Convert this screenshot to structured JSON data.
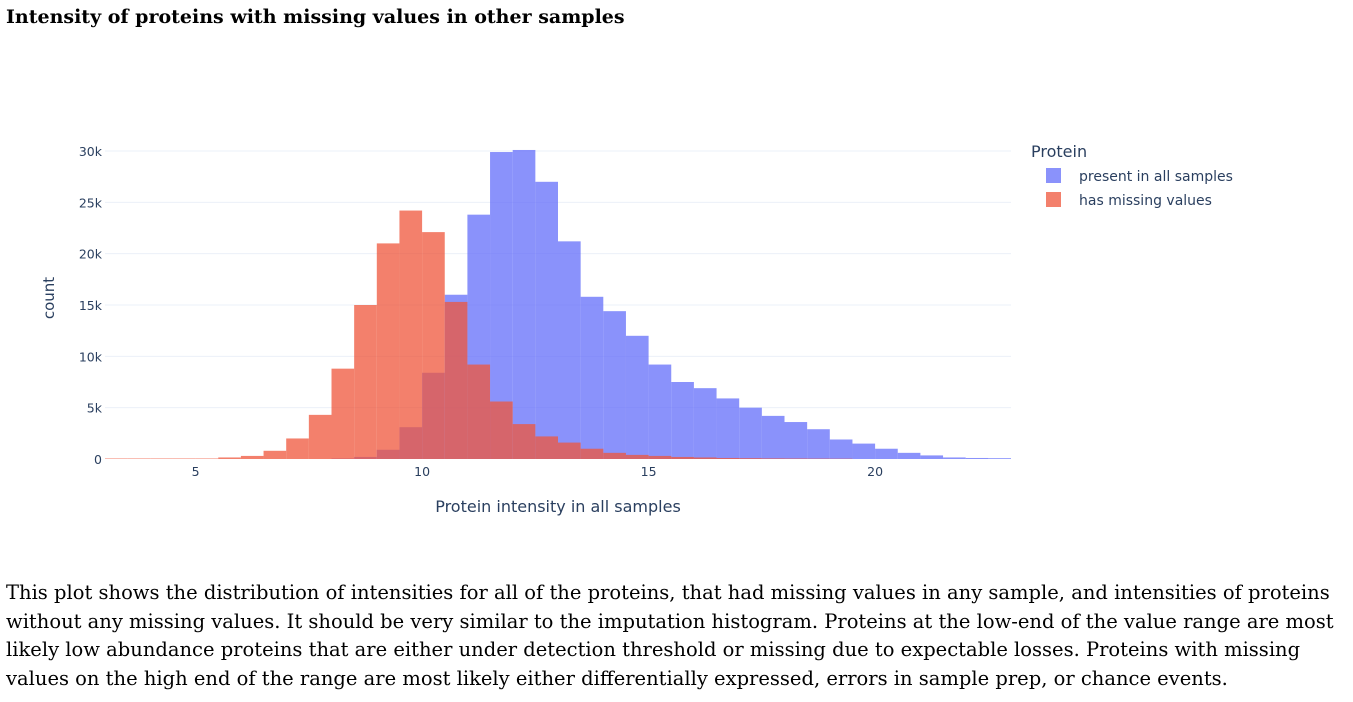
{
  "page": {
    "title": "Intensity of proteins with missing values in other samples",
    "description": "This plot shows the distribution of intensities for all of the proteins, that had missing values in any sample, and intensities of proteins without any missing values. It should be very similar to the imputation histogram. Proteins at the low-end of the value range are most likely low abundance proteins that are either under detection threshold or missing due to expectable losses. Proteins with missing values on the high end of the range are most likely either differentially expressed, errors in sample prep, or chance events."
  },
  "chart_data": {
    "type": "bar",
    "xlabel": "Protein intensity in all samples",
    "ylabel": "count",
    "xlim": [
      3,
      23
    ],
    "ylim": [
      0,
      30000
    ],
    "xticks": [
      5,
      10,
      15,
      20
    ],
    "xtick_labels": [
      "5",
      "10",
      "15",
      "20"
    ],
    "yticks": [
      0,
      5000,
      10000,
      15000,
      20000,
      25000,
      30000
    ],
    "ytick_labels": [
      "0",
      "5k",
      "10k",
      "15k",
      "20k",
      "25k",
      "30k"
    ],
    "grid": true,
    "bin_width": 0.5,
    "legend": {
      "title": "Protein",
      "position": "right"
    },
    "series": [
      {
        "name": "present in all samples",
        "color": "#636efa",
        "opacity": 0.75,
        "bins": [
          {
            "x": 8.0,
            "y": 50
          },
          {
            "x": 8.5,
            "y": 200
          },
          {
            "x": 9.0,
            "y": 900
          },
          {
            "x": 9.5,
            "y": 3100
          },
          {
            "x": 10.0,
            "y": 8400
          },
          {
            "x": 10.5,
            "y": 16000
          },
          {
            "x": 11.0,
            "y": 23800
          },
          {
            "x": 11.5,
            "y": 29900
          },
          {
            "x": 12.0,
            "y": 30100
          },
          {
            "x": 12.5,
            "y": 27000
          },
          {
            "x": 13.0,
            "y": 21200
          },
          {
            "x": 13.5,
            "y": 15800
          },
          {
            "x": 14.0,
            "y": 14400
          },
          {
            "x": 14.5,
            "y": 12000
          },
          {
            "x": 15.0,
            "y": 9200
          },
          {
            "x": 15.5,
            "y": 7500
          },
          {
            "x": 16.0,
            "y": 6900
          },
          {
            "x": 16.5,
            "y": 5900
          },
          {
            "x": 17.0,
            "y": 5000
          },
          {
            "x": 17.5,
            "y": 4200
          },
          {
            "x": 18.0,
            "y": 3600
          },
          {
            "x": 18.5,
            "y": 2900
          },
          {
            "x": 19.0,
            "y": 1900
          },
          {
            "x": 19.5,
            "y": 1500
          },
          {
            "x": 20.0,
            "y": 1000
          },
          {
            "x": 20.5,
            "y": 600
          },
          {
            "x": 21.0,
            "y": 350
          },
          {
            "x": 21.5,
            "y": 150
          },
          {
            "x": 22.0,
            "y": 100
          },
          {
            "x": 22.5,
            "y": 80
          }
        ]
      },
      {
        "name": "has missing values",
        "color": "#ef553b",
        "opacity": 0.75,
        "bins": [
          {
            "x": 3.0,
            "y": 50
          },
          {
            "x": 3.5,
            "y": 50
          },
          {
            "x": 4.0,
            "y": 50
          },
          {
            "x": 4.5,
            "y": 50
          },
          {
            "x": 5.0,
            "y": 50
          },
          {
            "x": 5.5,
            "y": 150
          },
          {
            "x": 6.0,
            "y": 300
          },
          {
            "x": 6.5,
            "y": 800
          },
          {
            "x": 7.0,
            "y": 2000
          },
          {
            "x": 7.5,
            "y": 4300
          },
          {
            "x": 8.0,
            "y": 8800
          },
          {
            "x": 8.5,
            "y": 15000
          },
          {
            "x": 9.0,
            "y": 21000
          },
          {
            "x": 9.5,
            "y": 24200
          },
          {
            "x": 10.0,
            "y": 22100
          },
          {
            "x": 10.5,
            "y": 15300
          },
          {
            "x": 11.0,
            "y": 9200
          },
          {
            "x": 11.5,
            "y": 5600
          },
          {
            "x": 12.0,
            "y": 3400
          },
          {
            "x": 12.5,
            "y": 2200
          },
          {
            "x": 13.0,
            "y": 1600
          },
          {
            "x": 13.5,
            "y": 1000
          },
          {
            "x": 14.0,
            "y": 600
          },
          {
            "x": 14.5,
            "y": 400
          },
          {
            "x": 15.0,
            "y": 300
          },
          {
            "x": 15.5,
            "y": 200
          },
          {
            "x": 16.0,
            "y": 150
          },
          {
            "x": 16.5,
            "y": 100
          },
          {
            "x": 17.0,
            "y": 80
          },
          {
            "x": 17.5,
            "y": 60
          },
          {
            "x": 18.0,
            "y": 50
          },
          {
            "x": 18.5,
            "y": 40
          },
          {
            "x": 19.0,
            "y": 30
          }
        ]
      }
    ]
  }
}
